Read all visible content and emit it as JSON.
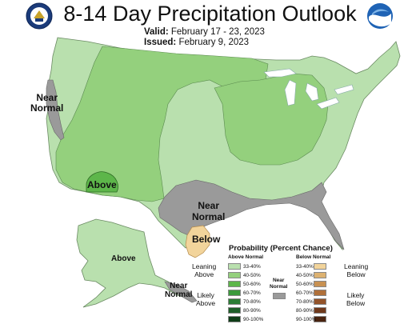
{
  "title": "8-14 Day Precipitation Outlook",
  "valid_label": "Valid:",
  "valid_dates": "February 17 - 23, 2023",
  "issued_label": "Issued:",
  "issued_date": "February 9, 2023",
  "map_labels": {
    "near_normal_west_1": "Near",
    "near_normal_west_2": "Normal",
    "above_southwest": "Above",
    "near_normal_gulf_1": "Near",
    "near_normal_gulf_2": "Normal",
    "below_texas": "Below",
    "above_alaska": "Above",
    "near_normal_alaska_1": "Near",
    "near_normal_alaska_2": "Normal"
  },
  "legend": {
    "title": "Probability (Percent Chance)",
    "above_header": "Above Normal",
    "below_header": "Below Normal",
    "near_header_1": "Near",
    "near_header_2": "Normal",
    "leaning_above_1": "Leaning",
    "leaning_above_2": "Above",
    "likely_above_1": "Likely",
    "likely_above_2": "Above",
    "leaning_below_1": "Leaning",
    "leaning_below_2": "Below",
    "likely_below_1": "Likely",
    "likely_below_2": "Below",
    "above_bins": [
      {
        "label": "33-40%",
        "color": "#b9e0ae"
      },
      {
        "label": "40-50%",
        "color": "#94d07d"
      },
      {
        "label": "50-60%",
        "color": "#5db64a"
      },
      {
        "label": "60-70%",
        "color": "#3b9a3c"
      },
      {
        "label": "70-80%",
        "color": "#2b7d35"
      },
      {
        "label": "80-90%",
        "color": "#1d5e28"
      },
      {
        "label": "90-100%",
        "color": "#0f3d18"
      }
    ],
    "below_bins": [
      {
        "label": "33-40%",
        "color": "#f2d49b"
      },
      {
        "label": "40-50%",
        "color": "#ddb271"
      },
      {
        "label": "50-60%",
        "color": "#c89152"
      },
      {
        "label": "60-70%",
        "color": "#b0703a"
      },
      {
        "label": "70-80%",
        "color": "#93532a"
      },
      {
        "label": "80-90%",
        "color": "#6f391c"
      },
      {
        "label": "90-100%",
        "color": "#4a2410"
      }
    ],
    "near_normal_color": "#9a9a9a"
  },
  "colors": {
    "above_33_40": "#b9e0ae",
    "above_40_50": "#94d07d",
    "above_50_60": "#5db64a",
    "below_33_40": "#f2d49b",
    "near_normal": "#9a9a9a",
    "lakes": "#ffffff"
  },
  "logos": {
    "left": "noaa-dept-commerce-seal-icon",
    "right": "noaa-logo-icon"
  }
}
